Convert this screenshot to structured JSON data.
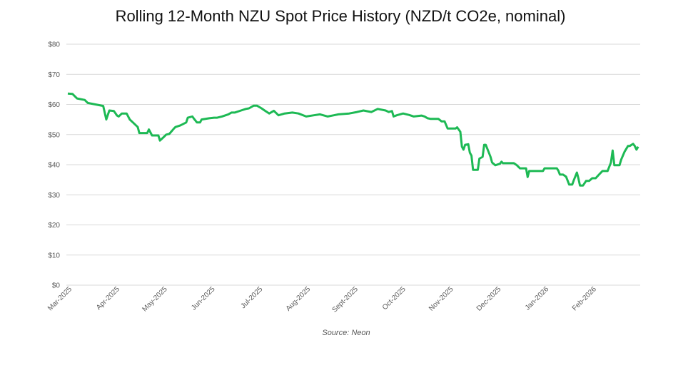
{
  "chart_data": {
    "type": "line",
    "title": "Rolling 12-Month NZU Spot Price History (NZD/t CO2e, nominal)",
    "source": "Source: Neon",
    "xlabel": "",
    "ylabel": "",
    "ylim": [
      0,
      80
    ],
    "yticks": [
      0,
      10,
      20,
      30,
      40,
      50,
      60,
      70,
      80
    ],
    "ytick_labels": [
      "$0",
      "$10",
      "$20",
      "$30",
      "$40",
      "$50",
      "$60",
      "$70",
      "$80"
    ],
    "xtick_labels": [
      "Mar-2025",
      "Apr-2025",
      "May-2025",
      "Jun-2025",
      "Jul-2025",
      "Aug-2025",
      "Sept-2025",
      "Oct-2025",
      "Nov-2025",
      "Dec-2025",
      "Jan-2026",
      "Feb-2026"
    ],
    "grid": true,
    "line_color": "#1DB954",
    "series": [
      {
        "points": [
          [
            "2025-03-01",
            63.6
          ],
          [
            "2025-03-04",
            63.5
          ],
          [
            "2025-03-07",
            62
          ],
          [
            "2025-03-12",
            61.5
          ],
          [
            "2025-03-14",
            60.5
          ],
          [
            "2025-03-19",
            60
          ],
          [
            "2025-03-24",
            59.5
          ],
          [
            "2025-03-26",
            55
          ],
          [
            "2025-03-28",
            58
          ],
          [
            "2025-03-31",
            57.8
          ],
          [
            "2025-04-02",
            56.3
          ],
          [
            "2025-04-03",
            56
          ],
          [
            "2025-04-05",
            57
          ],
          [
            "2025-04-08",
            57
          ],
          [
            "2025-04-10",
            55
          ],
          [
            "2025-04-12",
            54
          ],
          [
            "2025-04-15",
            52.5
          ],
          [
            "2025-04-16",
            50.5
          ],
          [
            "2025-04-21",
            50.5
          ],
          [
            "2025-04-22",
            51.7
          ],
          [
            "2025-04-24",
            49.7
          ],
          [
            "2025-04-28",
            49.7
          ],
          [
            "2025-04-29",
            48
          ],
          [
            "2025-05-01",
            49
          ],
          [
            "2025-05-03",
            50
          ],
          [
            "2025-05-05",
            50.2
          ],
          [
            "2025-05-08",
            52
          ],
          [
            "2025-05-09",
            52.5
          ],
          [
            "2025-05-12",
            53
          ],
          [
            "2025-05-16",
            54
          ],
          [
            "2025-05-17",
            55.6
          ],
          [
            "2025-05-20",
            56
          ],
          [
            "2025-05-21",
            55.3
          ],
          [
            "2025-05-23",
            54
          ],
          [
            "2025-05-25",
            54
          ],
          [
            "2025-05-26",
            55
          ],
          [
            "2025-05-31",
            55.4
          ],
          [
            "2025-06-03",
            55.6
          ],
          [
            "2025-06-05",
            55.6
          ],
          [
            "2025-06-08",
            56
          ],
          [
            "2025-06-12",
            56.7
          ],
          [
            "2025-06-14",
            57.3
          ],
          [
            "2025-06-16",
            57.3
          ],
          [
            "2025-06-20",
            58
          ],
          [
            "2025-06-23",
            58.5
          ],
          [
            "2025-06-25",
            58.7
          ],
          [
            "2025-06-28",
            59.6
          ],
          [
            "2025-06-30",
            59.6
          ],
          [
            "2025-07-03",
            58.7
          ],
          [
            "2025-07-05",
            58
          ],
          [
            "2025-07-08",
            57
          ],
          [
            "2025-07-11",
            57.9
          ],
          [
            "2025-07-14",
            56.4
          ],
          [
            "2025-07-18",
            57
          ],
          [
            "2025-07-23",
            57.3
          ],
          [
            "2025-07-27",
            57
          ],
          [
            "2025-08-01",
            56
          ],
          [
            "2025-08-06",
            56.4
          ],
          [
            "2025-08-10",
            56.7
          ],
          [
            "2025-08-15",
            56
          ],
          [
            "2025-08-19",
            56.4
          ],
          [
            "2025-08-22",
            56.7
          ],
          [
            "2025-08-29",
            57
          ],
          [
            "2025-09-03",
            57.5
          ],
          [
            "2025-09-07",
            58
          ],
          [
            "2025-09-12",
            57.5
          ],
          [
            "2025-09-16",
            58.5
          ],
          [
            "2025-09-21",
            58
          ],
          [
            "2025-09-23",
            57.5
          ],
          [
            "2025-09-25",
            57.8
          ],
          [
            "2025-09-26",
            56
          ],
          [
            "2025-09-28",
            56.4
          ],
          [
            "2025-10-02",
            57
          ],
          [
            "2025-10-06",
            56.5
          ],
          [
            "2025-10-09",
            56
          ],
          [
            "2025-10-14",
            56.3
          ],
          [
            "2025-10-16",
            56
          ],
          [
            "2025-10-18",
            55.4
          ],
          [
            "2025-10-20",
            55.2
          ],
          [
            "2025-10-25",
            55.2
          ],
          [
            "2025-10-27",
            54.4
          ],
          [
            "2025-10-29",
            54.4
          ],
          [
            "2025-10-31",
            52
          ],
          [
            "2025-11-05",
            52
          ],
          [
            "2025-11-06",
            52.4
          ],
          [
            "2025-11-08",
            50.9
          ],
          [
            "2025-11-09",
            46
          ],
          [
            "2025-11-10",
            45
          ],
          [
            "2025-11-11",
            46.6
          ],
          [
            "2025-11-13",
            46.8
          ],
          [
            "2025-11-14",
            44
          ],
          [
            "2025-11-15",
            43
          ],
          [
            "2025-11-16",
            38.3
          ],
          [
            "2025-11-19",
            38.3
          ],
          [
            "2025-11-20",
            42
          ],
          [
            "2025-11-22",
            42.6
          ],
          [
            "2025-11-23",
            46.6
          ],
          [
            "2025-11-24",
            46.6
          ],
          [
            "2025-11-27",
            42.6
          ],
          [
            "2025-11-28",
            40.7
          ],
          [
            "2025-11-30",
            39.8
          ],
          [
            "2025-12-03",
            40.3
          ],
          [
            "2025-12-04",
            41
          ],
          [
            "2025-12-05",
            40.5
          ],
          [
            "2025-12-12",
            40.5
          ],
          [
            "2025-12-14",
            39.8
          ],
          [
            "2025-12-16",
            38.8
          ],
          [
            "2025-12-20",
            38.8
          ],
          [
            "2025-12-21",
            35.9
          ],
          [
            "2025-12-22",
            37.9
          ],
          [
            "2025-12-31",
            37.9
          ],
          [
            "2026-01-01",
            38.8
          ],
          [
            "2026-01-09",
            38.8
          ],
          [
            "2026-01-10",
            38
          ],
          [
            "2026-01-11",
            36.7
          ],
          [
            "2026-01-13",
            36.7
          ],
          [
            "2026-01-15",
            36
          ],
          [
            "2026-01-17",
            33.4
          ],
          [
            "2026-01-19",
            33.4
          ],
          [
            "2026-01-20",
            34.8
          ],
          [
            "2026-01-22",
            37.4
          ],
          [
            "2026-01-23",
            35.5
          ],
          [
            "2026-01-24",
            33.1
          ],
          [
            "2026-01-26",
            33.1
          ],
          [
            "2026-01-28",
            34.6
          ],
          [
            "2026-01-30",
            34.6
          ],
          [
            "2026-02-01",
            35.5
          ],
          [
            "2026-02-03",
            35.5
          ],
          [
            "2026-02-05",
            36.7
          ],
          [
            "2026-02-07",
            37.9
          ],
          [
            "2026-02-10",
            37.9
          ],
          [
            "2026-02-12",
            40.7
          ],
          [
            "2026-02-13",
            44.7
          ],
          [
            "2026-02-14",
            39.8
          ],
          [
            "2026-02-17",
            39.8
          ],
          [
            "2026-02-18",
            41.7
          ],
          [
            "2026-02-20",
            44.3
          ],
          [
            "2026-02-22",
            46.2
          ],
          [
            "2026-02-23",
            46.2
          ],
          [
            "2026-02-25",
            46.9
          ],
          [
            "2026-02-26",
            46.2
          ],
          [
            "2026-02-27",
            45
          ],
          [
            "2026-02-28",
            46
          ]
        ]
      }
    ]
  }
}
